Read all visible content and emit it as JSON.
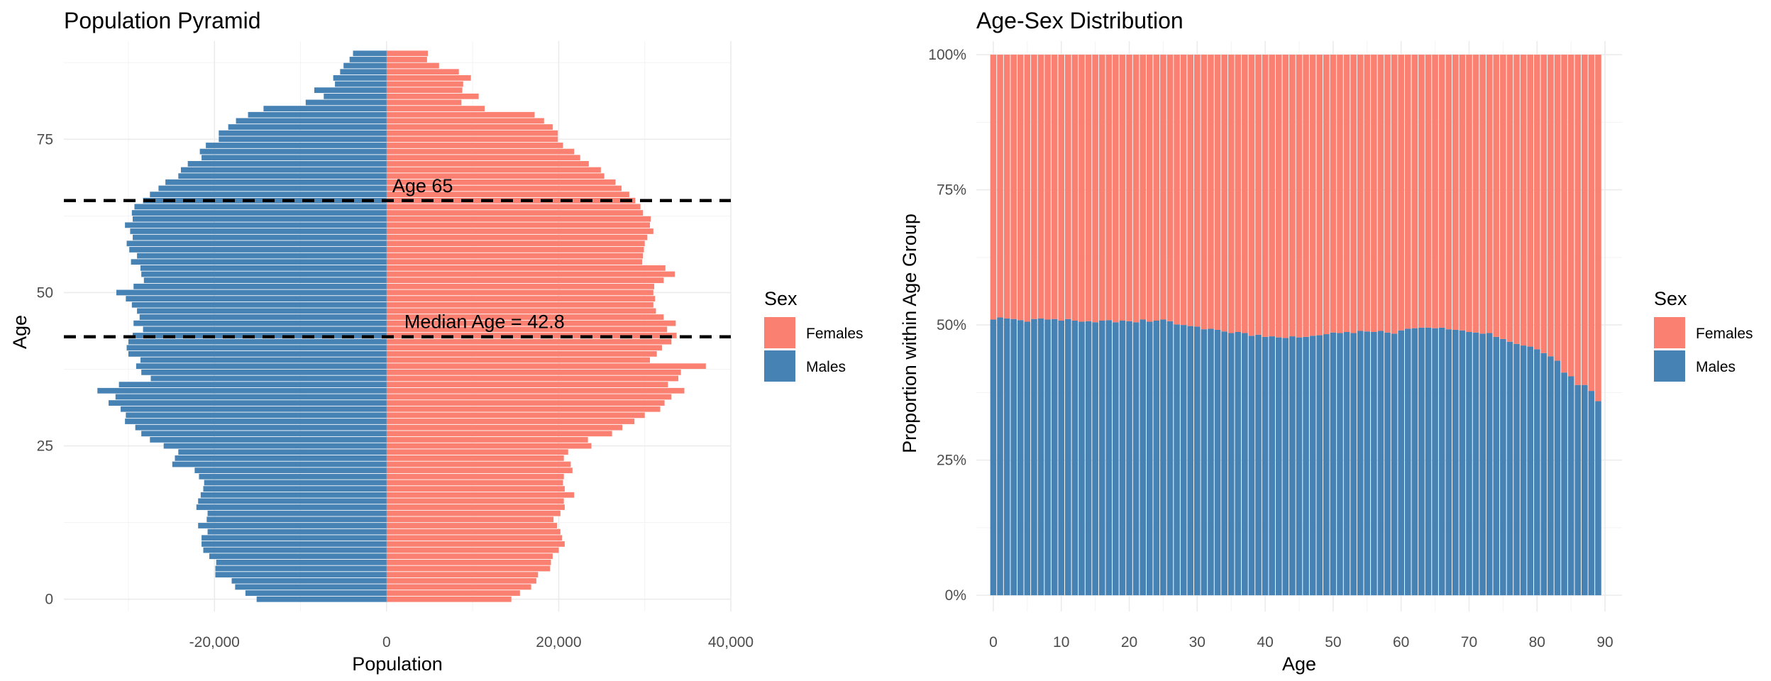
{
  "chart_data": [
    {
      "type": "bar",
      "orientation": "horizontal",
      "title": "Population Pyramid",
      "xlabel": "Population",
      "ylabel": "Age",
      "xlim": [
        -37500,
        40000
      ],
      "ylim": [
        -2,
        91
      ],
      "x_ticks": [
        -20000,
        0,
        20000,
        40000
      ],
      "x_tick_labels": [
        "-20,000",
        "0",
        "20,000",
        "40,000"
      ],
      "y_ticks": [
        0,
        25,
        50,
        75
      ],
      "y_tick_labels": [
        "0",
        "25",
        "50",
        "75"
      ],
      "ages": [
        0,
        1,
        2,
        3,
        4,
        5,
        6,
        7,
        8,
        9,
        10,
        11,
        12,
        13,
        14,
        15,
        16,
        17,
        18,
        19,
        20,
        21,
        22,
        23,
        24,
        25,
        26,
        27,
        28,
        29,
        30,
        31,
        32,
        33,
        34,
        35,
        36,
        37,
        38,
        39,
        40,
        41,
        42,
        43,
        44,
        45,
        46,
        47,
        48,
        49,
        50,
        51,
        52,
        53,
        54,
        55,
        56,
        57,
        58,
        59,
        60,
        61,
        62,
        63,
        64,
        65,
        66,
        67,
        68,
        69,
        70,
        71,
        72,
        73,
        74,
        75,
        76,
        77,
        78,
        79,
        80,
        81,
        82,
        83,
        84,
        85,
        86,
        87,
        88,
        89
      ],
      "series": [
        {
          "name": "Females",
          "color": "#FA8072",
          "values": [
            14500,
            15500,
            16800,
            17400,
            17600,
            19000,
            19100,
            19300,
            20000,
            20700,
            20400,
            20200,
            19800,
            19400,
            20200,
            20700,
            20600,
            21800,
            20700,
            20500,
            20600,
            21600,
            21400,
            20600,
            21100,
            23800,
            23400,
            26200,
            27400,
            28800,
            30000,
            31800,
            32300,
            33100,
            34600,
            32700,
            33900,
            34200,
            37100,
            30600,
            31400,
            32000,
            33100,
            33700,
            32600,
            33600,
            32200,
            31300,
            31000,
            31200,
            31000,
            31100,
            32200,
            33500,
            32400,
            29700,
            29800,
            29900,
            30000,
            30300,
            31000,
            30600,
            30700,
            29800,
            29500,
            28900,
            28200,
            27300,
            26600,
            25300,
            24900,
            23500,
            22500,
            21800,
            20500,
            19900,
            19900,
            19300,
            18300,
            17200,
            11400,
            8700,
            10700,
            8800,
            8900,
            9800,
            8400,
            6100,
            4700,
            4800
          ]
        },
        {
          "name": "Males",
          "color": "#4682B4",
          "values": [
            -15100,
            -16400,
            -17600,
            -18000,
            -19900,
            -19900,
            -19800,
            -20600,
            -21300,
            -21500,
            -21500,
            -20800,
            -21900,
            -20900,
            -20800,
            -22100,
            -21900,
            -21600,
            -21300,
            -21200,
            -21800,
            -22300,
            -24900,
            -24600,
            -24200,
            -25900,
            -27500,
            -28500,
            -29200,
            -30400,
            -30300,
            -30900,
            -32300,
            -31500,
            -33600,
            -31100,
            -27400,
            -28500,
            -29100,
            -28600,
            -30000,
            -30200,
            -30000,
            -29500,
            -28300,
            -29400,
            -28700,
            -29000,
            -29600,
            -30300,
            -31400,
            -29400,
            -28200,
            -28500,
            -28600,
            -29700,
            -29000,
            -29900,
            -30200,
            -29500,
            -29800,
            -30400,
            -29500,
            -29600,
            -29300,
            -28300,
            -27500,
            -26500,
            -25700,
            -24200,
            -23900,
            -23100,
            -21500,
            -21700,
            -21000,
            -19500,
            -19500,
            -18400,
            -17500,
            -16100,
            -14300,
            -9400,
            -7300,
            -8400,
            -6000,
            -6200,
            -5400,
            -5000,
            -4300,
            -3900
          ]
        }
      ],
      "hlines": [
        {
          "y": 65,
          "label": "Age 65",
          "style": "dashed"
        },
        {
          "y": 42.8,
          "label": "Median Age = 42.8",
          "style": "dashed"
        }
      ],
      "grid": true,
      "legend": {
        "title": "Sex",
        "position": "right",
        "entries": [
          "Females",
          "Males"
        ]
      }
    },
    {
      "type": "bar",
      "stacked": "fill",
      "title": "Age-Sex Distribution",
      "xlabel": "Age",
      "ylabel": "Proportion within Age Group",
      "xlim": [
        -2.5,
        92.5
      ],
      "ylim": [
        -0.03,
        1.025
      ],
      "x_ticks": [
        0,
        10,
        20,
        30,
        40,
        50,
        60,
        70,
        80,
        90
      ],
      "x_tick_labels": [
        "0",
        "10",
        "20",
        "30",
        "40",
        "50",
        "60",
        "70",
        "80",
        "90"
      ],
      "y_ticks": [
        0,
        0.25,
        0.5,
        0.75,
        1
      ],
      "y_tick_labels": [
        "0%",
        "25%",
        "50%",
        "75%",
        "100%"
      ],
      "ages": [
        0,
        1,
        2,
        3,
        4,
        5,
        6,
        7,
        8,
        9,
        10,
        11,
        12,
        13,
        14,
        15,
        16,
        17,
        18,
        19,
        20,
        21,
        22,
        23,
        24,
        25,
        26,
        27,
        28,
        29,
        30,
        31,
        32,
        33,
        34,
        35,
        36,
        37,
        38,
        39,
        40,
        41,
        42,
        43,
        44,
        45,
        46,
        47,
        48,
        49,
        50,
        51,
        52,
        53,
        54,
        55,
        56,
        57,
        58,
        59,
        60,
        61,
        62,
        63,
        64,
        65,
        66,
        67,
        68,
        69,
        70,
        71,
        72,
        73,
        74,
        75,
        76,
        77,
        78,
        79,
        80,
        81,
        82,
        83,
        84,
        85,
        86,
        87,
        88,
        89
      ],
      "series": [
        {
          "name": "Males",
          "color": "#4682B4",
          "values": [
            0.51,
            0.514,
            0.512,
            0.511,
            0.509,
            0.506,
            0.511,
            0.512,
            0.51,
            0.511,
            0.508,
            0.511,
            0.508,
            0.506,
            0.507,
            0.505,
            0.508,
            0.509,
            0.505,
            0.508,
            0.507,
            0.505,
            0.51,
            0.506,
            0.508,
            0.51,
            0.507,
            0.501,
            0.5,
            0.498,
            0.497,
            0.492,
            0.493,
            0.491,
            0.488,
            0.485,
            0.487,
            0.485,
            0.48,
            0.482,
            0.478,
            0.479,
            0.477,
            0.476,
            0.479,
            0.477,
            0.478,
            0.48,
            0.481,
            0.483,
            0.486,
            0.485,
            0.487,
            0.485,
            0.489,
            0.488,
            0.487,
            0.489,
            0.486,
            0.484,
            0.49,
            0.493,
            0.494,
            0.495,
            0.495,
            0.494,
            0.495,
            0.492,
            0.491,
            0.49,
            0.487,
            0.486,
            0.484,
            0.485,
            0.478,
            0.474,
            0.469,
            0.465,
            0.462,
            0.46,
            0.455,
            0.448,
            0.442,
            0.434,
            0.412,
            0.405,
            0.389,
            0.389,
            0.378,
            0.359
          ]
        },
        {
          "name": "Females",
          "color": "#FA8072",
          "values": [
            0.49,
            0.486,
            0.488,
            0.489,
            0.491,
            0.494,
            0.489,
            0.488,
            0.49,
            0.489,
            0.492,
            0.489,
            0.492,
            0.494,
            0.493,
            0.495,
            0.492,
            0.491,
            0.495,
            0.492,
            0.493,
            0.495,
            0.49,
            0.494,
            0.492,
            0.49,
            0.493,
            0.499,
            0.5,
            0.502,
            0.503,
            0.508,
            0.507,
            0.509,
            0.512,
            0.515,
            0.513,
            0.515,
            0.52,
            0.518,
            0.522,
            0.521,
            0.523,
            0.524,
            0.521,
            0.523,
            0.522,
            0.52,
            0.519,
            0.517,
            0.514,
            0.515,
            0.513,
            0.515,
            0.511,
            0.512,
            0.513,
            0.511,
            0.514,
            0.516,
            0.51,
            0.507,
            0.506,
            0.505,
            0.505,
            0.506,
            0.505,
            0.508,
            0.509,
            0.51,
            0.513,
            0.514,
            0.516,
            0.515,
            0.522,
            0.526,
            0.531,
            0.535,
            0.538,
            0.54,
            0.545,
            0.552,
            0.558,
            0.566,
            0.588,
            0.595,
            0.611,
            0.611,
            0.622,
            0.641
          ]
        }
      ],
      "grid": true,
      "legend": {
        "title": "Sex",
        "position": "right",
        "entries": [
          "Females",
          "Males"
        ]
      }
    }
  ]
}
